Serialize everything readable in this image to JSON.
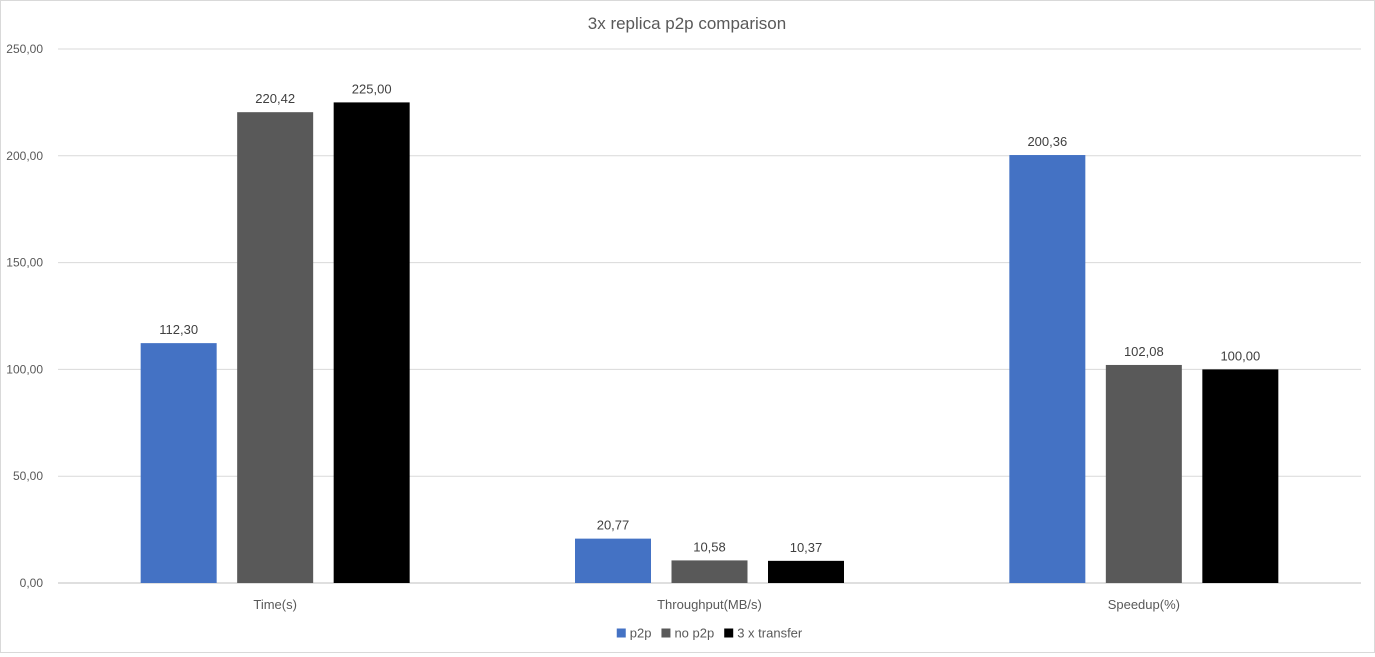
{
  "chart_data": {
    "type": "bar",
    "title": "3x replica p2p comparison",
    "xlabel": "",
    "ylabel": "",
    "categories": [
      "Time(s)",
      "Throughput(MB/s)",
      "Speedup(%)"
    ],
    "series": [
      {
        "name": "p2p",
        "color": "#4472C4",
        "values": [
          112.3,
          20.77,
          200.36
        ],
        "labels": [
          "112,30",
          "20,77",
          "200,36"
        ]
      },
      {
        "name": "no p2p",
        "color": "#595959",
        "values": [
          220.42,
          10.58,
          102.08
        ],
        "labels": [
          "220,42",
          "10,58",
          "102,08"
        ]
      },
      {
        "name": "3 x transfer",
        "color": "#000000",
        "values": [
          225.0,
          10.37,
          100.0
        ],
        "labels": [
          "225,00",
          "10,37",
          "100,00"
        ]
      }
    ],
    "ylim": [
      0,
      250
    ],
    "yticks": [
      "0,00",
      "50,00",
      "100,00",
      "150,00",
      "200,00",
      "250,00"
    ],
    "grid": true,
    "legend_position": "bottom"
  }
}
